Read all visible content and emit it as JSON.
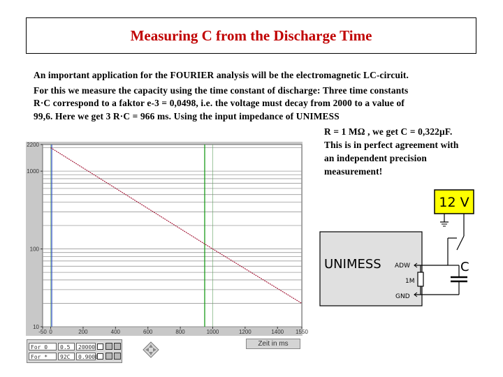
{
  "title": "Measuring C from the Discharge Time",
  "paragraph": {
    "line1": "An important application for the FOURIER analysis will be the electromagnetic LC-circuit.",
    "line2": "For this we measure the capacity using the time constant of discharge: Three time constants",
    "line3": "R·C correspond to a faktor e-3 = 0,0498, i.e. the voltage must decay from 2000 to a value of",
    "line4": "99,6. Here we get 3 R·C = 966 ms. Using the input impedance  of UNIMESS",
    "line5": "R = 1 MΩ , we get C = 0,322µF.",
    "line6": "This is in perfect agreement with",
    "line7": "an independent precision",
    "line8": "measurement!"
  },
  "chart_data": {
    "type": "line",
    "yscale": "log",
    "ylim": [
      10,
      2200
    ],
    "xlim": [
      -50,
      1550
    ],
    "y_ticks": [
      "2200",
      "1000",
      "100",
      "10"
    ],
    "x_ticks": [
      "-50",
      "0",
      "200",
      "400",
      "600",
      "800",
      "1000",
      "1200",
      "1400",
      "1550"
    ],
    "series": [
      {
        "x": [
          0,
          1000,
          1550
        ],
        "y": [
          2000,
          100,
          20
        ]
      }
    ],
    "colors": {
      "line": "#a01030",
      "grid": "#9a9a9a",
      "cursor": "#1a9a1a",
      "cursor2": "#3050c0"
    }
  },
  "controls": {
    "row1": {
      "label": "For  0",
      "value1": "0.5",
      "value2": "20000"
    },
    "row2": {
      "label": "For  *",
      "value1": "92C",
      "value2": "0.9000"
    },
    "zoom_label": "Zeit in ms"
  },
  "circuit": {
    "battery": "12 V",
    "device": "UNIMESS",
    "adw": "ADW",
    "resistor": "1M",
    "gnd": "GND",
    "capacitor": "C",
    "battery_color": "#ffff00"
  }
}
